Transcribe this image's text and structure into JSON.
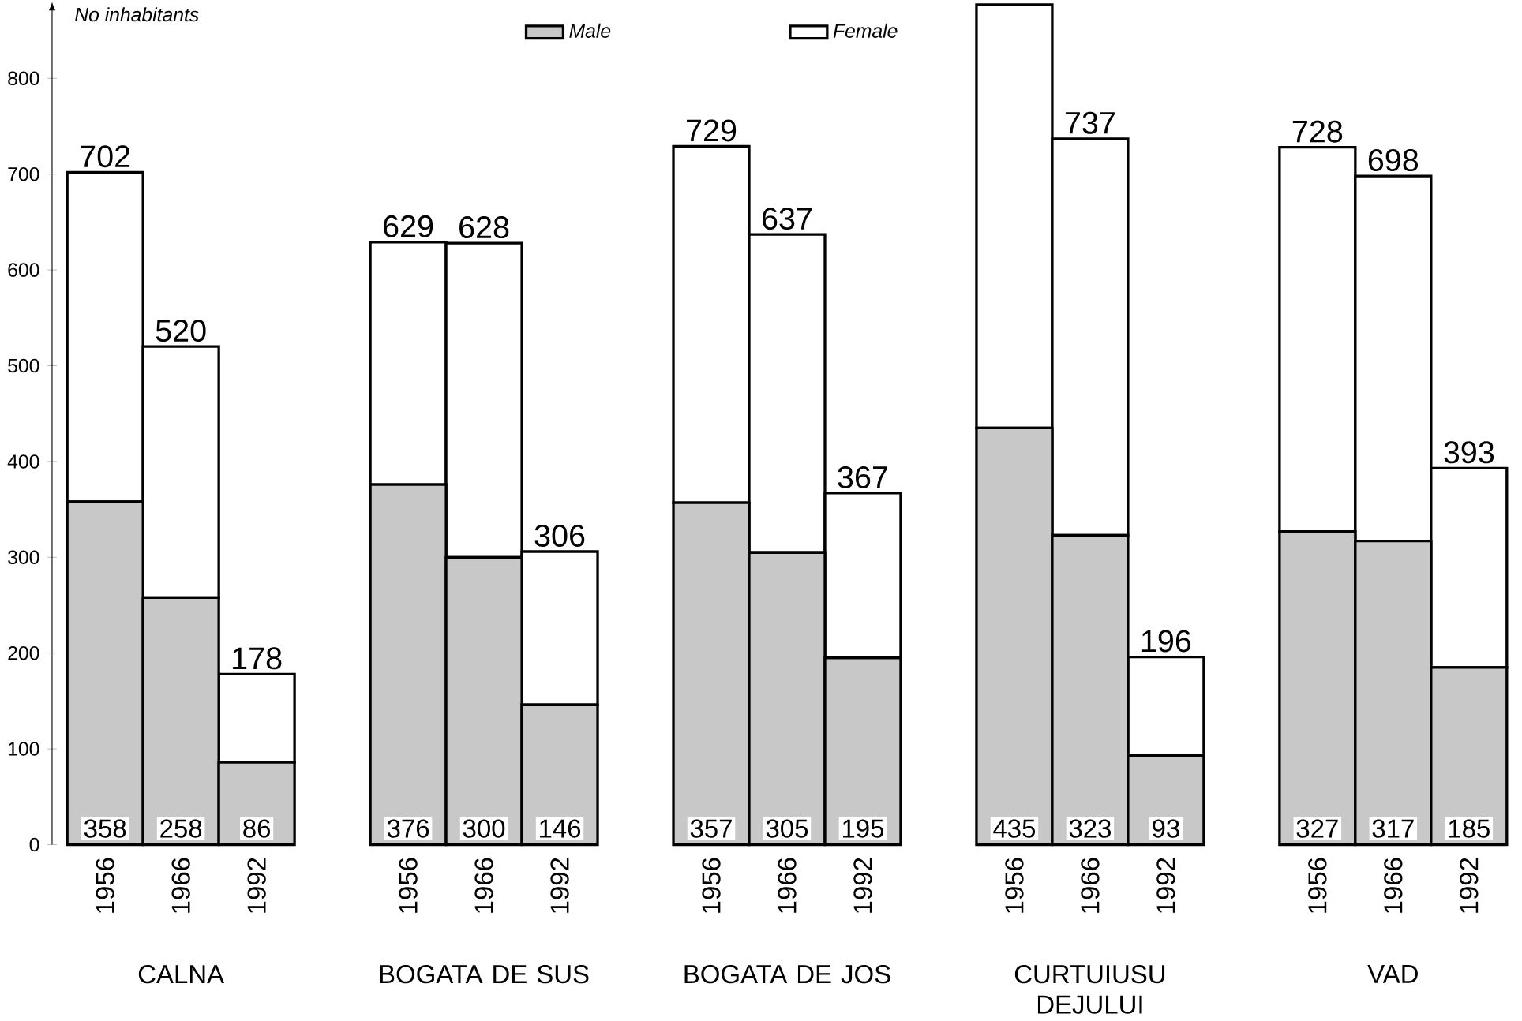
{
  "chart_data": {
    "type": "bar",
    "stacked": true,
    "ylabel": "No inhabitants",
    "categories": [
      "1956",
      "1966",
      "1992",
      null,
      "1956",
      "1966",
      "1992",
      null,
      "1956",
      "1966",
      "1992",
      null,
      "1956",
      "1966",
      "1992",
      null,
      "1956",
      "1966",
      "1992"
    ],
    "series": [
      {
        "name": "Male",
        "color": "#c8c8c8",
        "values": [
          358,
          258,
          86,
          null,
          376,
          300,
          146,
          null,
          357,
          305,
          195,
          null,
          435,
          323,
          93,
          null,
          327,
          317,
          185
        ],
        "value_labels": [
          "358",
          "258",
          "86",
          null,
          "376",
          "300",
          "146",
          null,
          "357",
          "305",
          "195",
          null,
          "435",
          "323",
          "93",
          null,
          "327",
          "317",
          "185"
        ]
      },
      {
        "name": "Female",
        "color": "#ffffff",
        "values": [
          344,
          262,
          92,
          null,
          253,
          328,
          160,
          null,
          372,
          332,
          172,
          null,
          442,
          414,
          103,
          null,
          401,
          381,
          208
        ]
      }
    ],
    "totals": [
      "702",
      "520",
      "178",
      null,
      "629",
      "628",
      "306",
      null,
      "729",
      "637",
      "367",
      null,
      null,
      "737",
      "196",
      null,
      "728",
      "698",
      "393"
    ],
    "annotations": [
      "CALNA",
      "BOGATA DE SUS",
      "BOGATA DE JOS",
      "CURTUIUSU DEJULUI",
      "VAD"
    ],
    "ylim": [
      0,
      880
    ],
    "yticks": [
      0,
      100,
      200,
      300,
      400,
      500,
      600,
      700,
      800
    ],
    "legend": "top",
    "grid": false
  }
}
